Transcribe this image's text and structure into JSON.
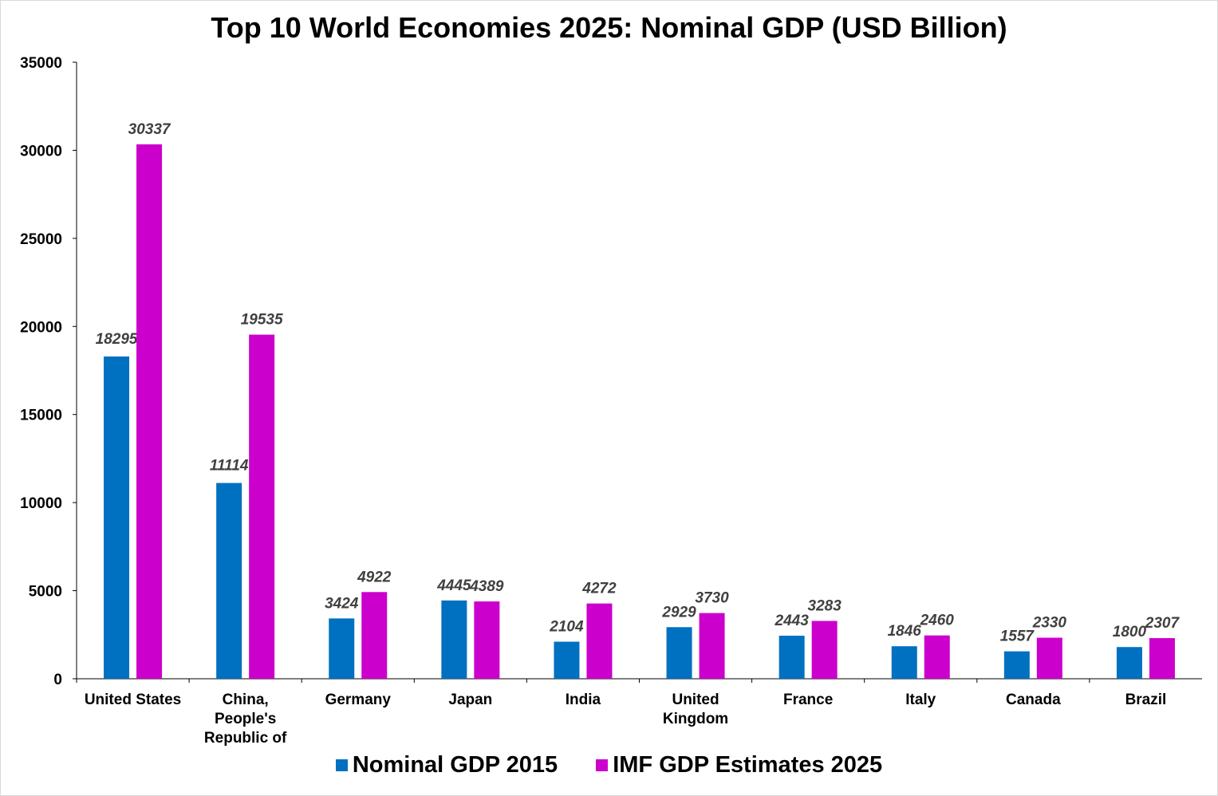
{
  "chart_data": {
    "type": "bar",
    "title": "Top 10 World Economies 2025: Nominal GDP (USD Billion)",
    "xlabel": "",
    "ylabel": "",
    "ylim": [
      0,
      35000
    ],
    "yticks": [
      0,
      5000,
      10000,
      15000,
      20000,
      25000,
      30000,
      35000
    ],
    "grid": false,
    "legend_position": "bottom",
    "categories": [
      [
        "United States"
      ],
      [
        "China,",
        "People's",
        "Republic of"
      ],
      [
        "Germany"
      ],
      [
        "Japan"
      ],
      [
        "India"
      ],
      [
        "United",
        "Kingdom"
      ],
      [
        "France"
      ],
      [
        "Italy"
      ],
      [
        "Canada"
      ],
      [
        "Brazil"
      ]
    ],
    "series": [
      {
        "name": "Nominal GDP 2015",
        "color": "#0070C0",
        "values": [
          18295,
          11114,
          3424,
          4445,
          2104,
          2929,
          2443,
          1846,
          1557,
          1800
        ]
      },
      {
        "name": "IMF GDP Estimates 2025",
        "color": "#CC00CC",
        "values": [
          30337,
          19535,
          4922,
          4389,
          4272,
          3730,
          3283,
          2460,
          2330,
          2307
        ]
      }
    ]
  }
}
